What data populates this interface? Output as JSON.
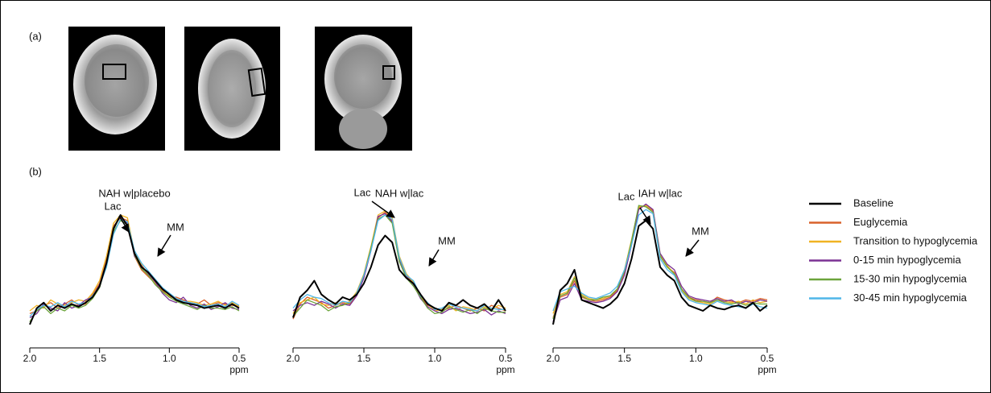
{
  "panels": [
    "(a)",
    "(b)"
  ],
  "chart_data": [
    {
      "type": "line",
      "title": "NAH w|placebo",
      "xlabel": "ppm",
      "xlim": [
        2.0,
        0.5
      ],
      "ylim": [
        0,
        100
      ],
      "xticks": [
        {
          "value": 2.0,
          "label": "2.0"
        },
        1.5,
        {
          "value": 1.0,
          "label": "1.0"
        },
        0.5
      ],
      "annotations": [
        "Lac",
        "MM"
      ],
      "x": [
        2.0,
        1.95,
        1.9,
        1.85,
        1.8,
        1.75,
        1.7,
        1.65,
        1.6,
        1.55,
        1.5,
        1.45,
        1.4,
        1.35,
        1.3,
        1.25,
        1.2,
        1.15,
        1.1,
        1.05,
        1.0,
        0.95,
        0.9,
        0.85,
        0.8,
        0.75,
        0.7,
        0.65,
        0.6,
        0.55,
        0.5
      ],
      "series": [
        {
          "name": "Euglycemia",
          "color": "#d9622b",
          "values": [
            18,
            20,
            24,
            26,
            22,
            25,
            28,
            24,
            25,
            32,
            40,
            58,
            82,
            88,
            86,
            60,
            50,
            45,
            40,
            35,
            30,
            30,
            28,
            26,
            25,
            28,
            24,
            26,
            25,
            24,
            24
          ]
        },
        {
          "name": "Transition to hypoglycemia",
          "color": "#f0b323",
          "values": [
            20,
            24,
            22,
            28,
            25,
            24,
            26,
            28,
            27,
            33,
            42,
            60,
            84,
            90,
            88,
            63,
            54,
            46,
            40,
            34,
            31,
            29,
            27,
            27,
            26,
            24,
            25,
            27,
            24,
            26,
            23
          ]
        },
        {
          "name": "0-15 min hypoglycemia",
          "color": "#7b3294",
          "values": [
            15,
            18,
            25,
            22,
            20,
            26,
            22,
            24,
            28,
            30,
            39,
            56,
            81,
            89,
            84,
            60,
            53,
            47,
            41,
            33,
            28,
            26,
            30,
            24,
            22,
            25,
            21,
            23,
            26,
            22,
            21
          ]
        },
        {
          "name": "15-30 min hypoglycemia",
          "color": "#6ca43c",
          "values": [
            12,
            20,
            23,
            18,
            22,
            20,
            24,
            22,
            24,
            29,
            37,
            54,
            78,
            86,
            83,
            61,
            51,
            46,
            39,
            34,
            30,
            27,
            25,
            23,
            21,
            24,
            22,
            22,
            21,
            23,
            20
          ]
        },
        {
          "name": "30-45 min hypoglycemia",
          "color": "#4fb6e8",
          "values": [
            16,
            21,
            24,
            23,
            26,
            23,
            27,
            25,
            26,
            31,
            38,
            52,
            76,
            87,
            85,
            64,
            55,
            49,
            43,
            37,
            33,
            29,
            27,
            26,
            25,
            23,
            24,
            25,
            23,
            27,
            24
          ]
        },
        {
          "name": "Baseline",
          "color": "#000000",
          "values": [
            10,
            22,
            26,
            20,
            24,
            22,
            25,
            23,
            26,
            30,
            38,
            55,
            80,
            90,
            82,
            62,
            52,
            48,
            42,
            36,
            32,
            28,
            26,
            25,
            24,
            22,
            23,
            24,
            22,
            25,
            22
          ]
        }
      ]
    },
    {
      "type": "line",
      "title": "NAH w|lac",
      "xlabel": "ppm",
      "xlim": [
        2.0,
        0.5
      ],
      "ylim": [
        0,
        100
      ],
      "xticks": [
        {
          "value": 2.0,
          "label": "2.0"
        },
        1.5,
        {
          "value": 1.0,
          "label": "1.0"
        },
        0.5
      ],
      "annotations": [
        "Lac",
        "MM"
      ],
      "x": [
        2.0,
        1.95,
        1.9,
        1.85,
        1.8,
        1.75,
        1.7,
        1.65,
        1.6,
        1.55,
        1.5,
        1.45,
        1.4,
        1.35,
        1.3,
        1.25,
        1.2,
        1.15,
        1.1,
        1.05,
        1.0,
        0.95,
        0.9,
        0.85,
        0.8,
        0.75,
        0.7,
        0.65,
        0.6,
        0.55,
        0.5
      ],
      "series": [
        {
          "name": "Euglycemia",
          "color": "#d9622b",
          "values": [
            14,
            25,
            30,
            28,
            26,
            22,
            24,
            26,
            25,
            32,
            45,
            65,
            88,
            92,
            86,
            58,
            46,
            40,
            30,
            24,
            22,
            20,
            22,
            24,
            22,
            20,
            22,
            20,
            24,
            22,
            20
          ]
        },
        {
          "name": "Transition to hypoglycemia",
          "color": "#f0b323",
          "values": [
            18,
            26,
            28,
            30,
            25,
            24,
            26,
            24,
            27,
            34,
            47,
            67,
            90,
            93,
            88,
            60,
            47,
            41,
            31,
            25,
            20,
            21,
            24,
            20,
            23,
            22,
            20,
            23,
            21,
            24,
            22
          ]
        },
        {
          "name": "0-15 min hypoglycemia",
          "color": "#7b3294",
          "values": [
            20,
            24,
            26,
            24,
            27,
            25,
            22,
            25,
            24,
            31,
            44,
            64,
            89,
            91,
            85,
            57,
            45,
            39,
            29,
            23,
            20,
            18,
            21,
            22,
            20,
            18,
            19,
            21,
            17,
            20,
            18
          ]
        },
        {
          "name": "15-30 min hypoglycemia",
          "color": "#6ca43c",
          "values": [
            16,
            22,
            28,
            26,
            24,
            20,
            23,
            24,
            26,
            33,
            46,
            66,
            87,
            90,
            84,
            56,
            44,
            38,
            30,
            22,
            18,
            19,
            23,
            21,
            19,
            21,
            18,
            22,
            20,
            19,
            19
          ]
        },
        {
          "name": "30-45 min hypoglycemia",
          "color": "#4fb6e8",
          "values": [
            22,
            28,
            32,
            30,
            29,
            26,
            24,
            27,
            26,
            33,
            46,
            64,
            86,
            90,
            87,
            59,
            46,
            42,
            31,
            26,
            21,
            22,
            25,
            23,
            22,
            21,
            20,
            24,
            22,
            21,
            21
          ]
        },
        {
          "name": "Baseline",
          "color": "#000000",
          "values": [
            15,
            30,
            35,
            42,
            32,
            28,
            25,
            30,
            28,
            32,
            40,
            52,
            68,
            75,
            70,
            50,
            44,
            40,
            32,
            25,
            22,
            20,
            26,
            24,
            28,
            24,
            22,
            25,
            20,
            28,
            20
          ]
        }
      ]
    },
    {
      "type": "line",
      "title": "IAH w|lac",
      "xlabel": "ppm",
      "xlim": [
        2.0,
        0.5
      ],
      "ylim": [
        0,
        100
      ],
      "xticks": [
        {
          "value": 2.0,
          "label": "2.0"
        },
        1.5,
        {
          "value": 1.0,
          "label": "1.0"
        },
        0.5
      ],
      "annotations": [
        "Lac",
        "MM"
      ],
      "x": [
        2.0,
        1.95,
        1.9,
        1.85,
        1.8,
        1.75,
        1.7,
        1.65,
        1.6,
        1.55,
        1.5,
        1.45,
        1.4,
        1.35,
        1.3,
        1.25,
        1.2,
        1.15,
        1.1,
        1.05,
        1.0,
        0.95,
        0.9,
        0.85,
        0.8,
        0.75,
        0.7,
        0.65,
        0.6,
        0.55,
        0.5
      ],
      "series": [
        {
          "name": "Euglycemia",
          "color": "#d9622b",
          "values": [
            15,
            30,
            32,
            42,
            30,
            28,
            27,
            28,
            30,
            35,
            48,
            70,
            95,
            97,
            93,
            60,
            52,
            48,
            36,
            30,
            28,
            27,
            26,
            30,
            28,
            27,
            26,
            28,
            27,
            29,
            28
          ]
        },
        {
          "name": "Transition to hypoglycemia",
          "color": "#f0b323",
          "values": [
            18,
            32,
            34,
            45,
            32,
            29,
            28,
            29,
            31,
            36,
            50,
            72,
            96,
            97,
            94,
            61,
            53,
            47,
            35,
            29,
            27,
            26,
            25,
            28,
            27,
            26,
            27,
            25,
            28,
            26,
            27
          ]
        },
        {
          "name": "0-15 min hypoglycemia",
          "color": "#7b3294",
          "values": [
            12,
            28,
            30,
            40,
            28,
            27,
            26,
            27,
            29,
            34,
            46,
            68,
            94,
            98,
            94,
            62,
            54,
            50,
            38,
            31,
            29,
            28,
            27,
            29,
            27,
            28,
            25,
            27,
            26,
            28,
            27
          ]
        },
        {
          "name": "15-30 min hypoglycemia",
          "color": "#6ca43c",
          "values": [
            14,
            31,
            33,
            44,
            31,
            28,
            28,
            30,
            31,
            36,
            49,
            71,
            97,
            96,
            92,
            60,
            52,
            47,
            36,
            30,
            27,
            27,
            26,
            28,
            26,
            25,
            26,
            24,
            26,
            25,
            25
          ]
        },
        {
          "name": "30-45 min hypoglycemia",
          "color": "#4fb6e8",
          "values": [
            20,
            34,
            36,
            38,
            33,
            30,
            29,
            31,
            33,
            38,
            50,
            68,
            90,
            94,
            91,
            58,
            50,
            46,
            34,
            28,
            26,
            25,
            24,
            27,
            25,
            24,
            23,
            22,
            25,
            23,
            22
          ]
        },
        {
          "name": "Baseline",
          "color": "#000000",
          "values": [
            10,
            35,
            40,
            50,
            28,
            26,
            24,
            22,
            25,
            30,
            40,
            58,
            82,
            86,
            80,
            52,
            46,
            42,
            30,
            24,
            22,
            20,
            24,
            22,
            21,
            23,
            24,
            22,
            26,
            20,
            24
          ]
        }
      ]
    }
  ]
}
